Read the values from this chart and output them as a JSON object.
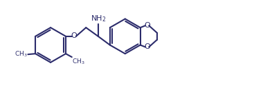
{
  "line_color": "#2b2b6b",
  "line_width": 1.5,
  "bg_color": "#ffffff",
  "figsize": [
    3.8,
    1.31
  ],
  "dpi": 100,
  "xlim": [
    -1,
    38
  ],
  "ylim": [
    -1,
    12
  ]
}
